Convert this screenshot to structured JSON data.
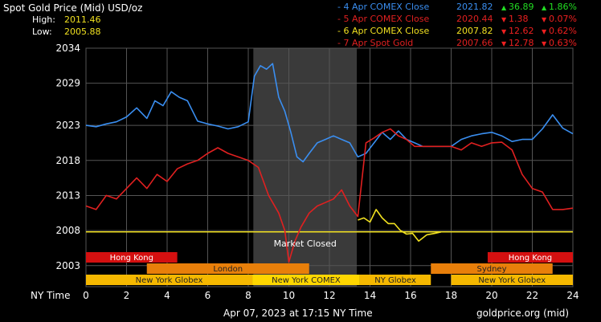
{
  "header": {
    "title": "Spot Gold Price (Mid) USD/oz",
    "high_label": "High:",
    "high_value": "2011.46",
    "low_label": "Low:",
    "low_value": "2005.88"
  },
  "legend": [
    {
      "label": "- 4 Apr COMEX Close",
      "value": "2021.82",
      "change": "36.89",
      "pct": "1.86%",
      "direction": "up",
      "color": "#3a8ef0"
    },
    {
      "label": "- 5 Apr COMEX Close",
      "value": "2020.44",
      "change": "1.38",
      "pct": "0.07%",
      "direction": "down",
      "color": "#e02020"
    },
    {
      "label": "- 6 Apr COMEX Close",
      "value": "2007.82",
      "change": "12.62",
      "pct": "0.62%",
      "direction": "down",
      "color": "#f0e020"
    },
    {
      "label": "- 7 Apr Spot Gold",
      "value": "2007.66",
      "change": "12.78",
      "pct": "0.63%",
      "direction": "down",
      "color": "#e02020"
    }
  ],
  "colors": {
    "up": "#22dd22",
    "down": "#ee2020",
    "grid": "#555555",
    "market_closed": "#3a3a3a"
  },
  "icons": {
    "up": "triangle-up-icon",
    "down": "triangle-down-icon"
  },
  "chart_data": {
    "type": "line",
    "xlabel": "NY Time",
    "xlim": [
      0,
      24
    ],
    "ylim": [
      2000,
      2034
    ],
    "x_ticks": [
      0,
      2,
      4,
      6,
      8,
      10,
      12,
      14,
      16,
      18,
      20,
      22,
      24
    ],
    "y_ticks": [
      2003,
      2008,
      2013,
      2018,
      2023,
      2029,
      2034
    ],
    "grid": true,
    "market_closed": {
      "label": "Market Closed",
      "x_start": 8.25,
      "x_end": 13.35
    },
    "reference_line": {
      "y": 2007.82,
      "color": "#f0e020"
    },
    "series": [
      {
        "name": "4 Apr COMEX Close",
        "color": "#3a8ef0",
        "x": [
          0,
          0.5,
          1,
          1.5,
          2,
          2.5,
          3,
          3.4,
          3.8,
          4.2,
          4.6,
          5,
          5.5,
          6,
          6.5,
          7,
          7.5,
          8,
          8.3,
          8.6,
          8.9,
          9.2,
          9.5,
          9.8,
          10.1,
          10.4,
          10.7,
          11,
          11.4,
          11.8,
          12.2,
          12.6,
          13,
          13.4,
          13.8,
          14.2,
          14.6,
          15,
          15.4,
          15.8,
          16.2,
          16.6,
          17,
          17.5,
          18,
          18.5,
          19,
          19.5,
          20,
          20.5,
          21,
          21.5,
          22,
          22.5,
          23,
          23.5,
          24
        ],
        "y": [
          2023,
          2022.8,
          2023.2,
          2023.5,
          2024.2,
          2025.5,
          2024,
          2026.5,
          2025.8,
          2027.8,
          2027,
          2026.5,
          2023.6,
          2023.2,
          2022.9,
          2022.5,
          2022.8,
          2023.5,
          2030,
          2031.5,
          2031,
          2031.8,
          2027,
          2025,
          2022,
          2018.5,
          2017.8,
          2019,
          2020.5,
          2021,
          2021.5,
          2021,
          2020.5,
          2018.5,
          2019,
          2020.5,
          2022,
          2021,
          2022.2,
          2021,
          2020.5,
          2020,
          2020,
          2020,
          2020,
          2021,
          2021.5,
          2021.8,
          2022,
          2021.5,
          2020.7,
          2021,
          2021,
          2022.5,
          2024.5,
          2022.6,
          2021.8
        ]
      },
      {
        "name": "5 Apr COMEX Close",
        "color": "#e02020",
        "x": [
          0,
          0.5,
          1,
          1.5,
          2,
          2.5,
          3,
          3.5,
          4,
          4.5,
          5,
          5.5,
          6,
          6.5,
          7,
          7.5,
          8,
          8.5,
          9,
          9.5,
          9.8,
          10,
          10.3,
          10.6,
          11,
          11.4,
          11.8,
          12.2,
          12.6,
          13,
          13.4,
          13.8,
          14.2,
          14.6,
          15,
          15.4,
          15.8,
          16.2,
          16.6,
          17,
          17.5,
          18,
          18.5,
          19,
          19.5,
          20,
          20.5,
          21,
          21.5,
          22,
          22.5,
          23,
          23.5,
          24
        ],
        "y": [
          2011.5,
          2011,
          2013,
          2012.5,
          2014,
          2015.5,
          2014,
          2016,
          2015,
          2016.8,
          2017.5,
          2018,
          2019,
          2019.8,
          2019,
          2018.5,
          2018,
          2017,
          2013,
          2010.5,
          2008,
          2003.5,
          2006.5,
          2008.5,
          2010.5,
          2011.5,
          2012,
          2012.5,
          2013.8,
          2011.5,
          2010,
          2020.5,
          2021.2,
          2022,
          2022.5,
          2021.5,
          2021,
          2020,
          2020,
          2020,
          2020,
          2020,
          2019.5,
          2020.5,
          2020,
          2020.5,
          2020.6,
          2019.5,
          2016,
          2014,
          2013.5,
          2011,
          2011,
          2011.2
        ]
      },
      {
        "name": "6 Apr COMEX Close",
        "color": "#f0e020",
        "x": [
          13.4,
          13.7,
          14,
          14.3,
          14.6,
          14.9,
          15.2,
          15.5,
          15.8,
          16.1,
          16.4,
          16.8,
          17.2,
          17.5
        ],
        "y": [
          2009.5,
          2009.8,
          2009.2,
          2011,
          2009.8,
          2009,
          2009,
          2008,
          2007.5,
          2007.6,
          2006.5,
          2007.4,
          2007.6,
          2007.8
        ]
      }
    ]
  },
  "sessions": [
    {
      "label": "Hong Kong",
      "start": 0,
      "end": 4.5,
      "row": 0,
      "color": "#d41010"
    },
    {
      "label": "Hong Kong",
      "start": 19.8,
      "end": 24,
      "row": 0,
      "color": "#d41010"
    },
    {
      "label": "London",
      "start": 3,
      "end": 11,
      "row": 1,
      "color": "#e87f0a"
    },
    {
      "label": "Sydney",
      "start": 17,
      "end": 23,
      "row": 1,
      "color": "#e87f0a"
    },
    {
      "label": "New York Globex",
      "start": 0,
      "end": 8.2,
      "row": 2,
      "color": "#f5b800"
    },
    {
      "label": "New York COMEX",
      "start": 8.2,
      "end": 13.5,
      "row": 2,
      "color": "#ffd700"
    },
    {
      "label": "NY Globex",
      "start": 13.5,
      "end": 17,
      "row": 2,
      "color": "#f5b800"
    },
    {
      "label": "New York Globex",
      "start": 18,
      "end": 24,
      "row": 2,
      "color": "#f5b800"
    }
  ],
  "footer": {
    "timestamp": "Apr 07, 2023 at 17:15 NY Time",
    "source": "goldprice.org (mid)"
  }
}
